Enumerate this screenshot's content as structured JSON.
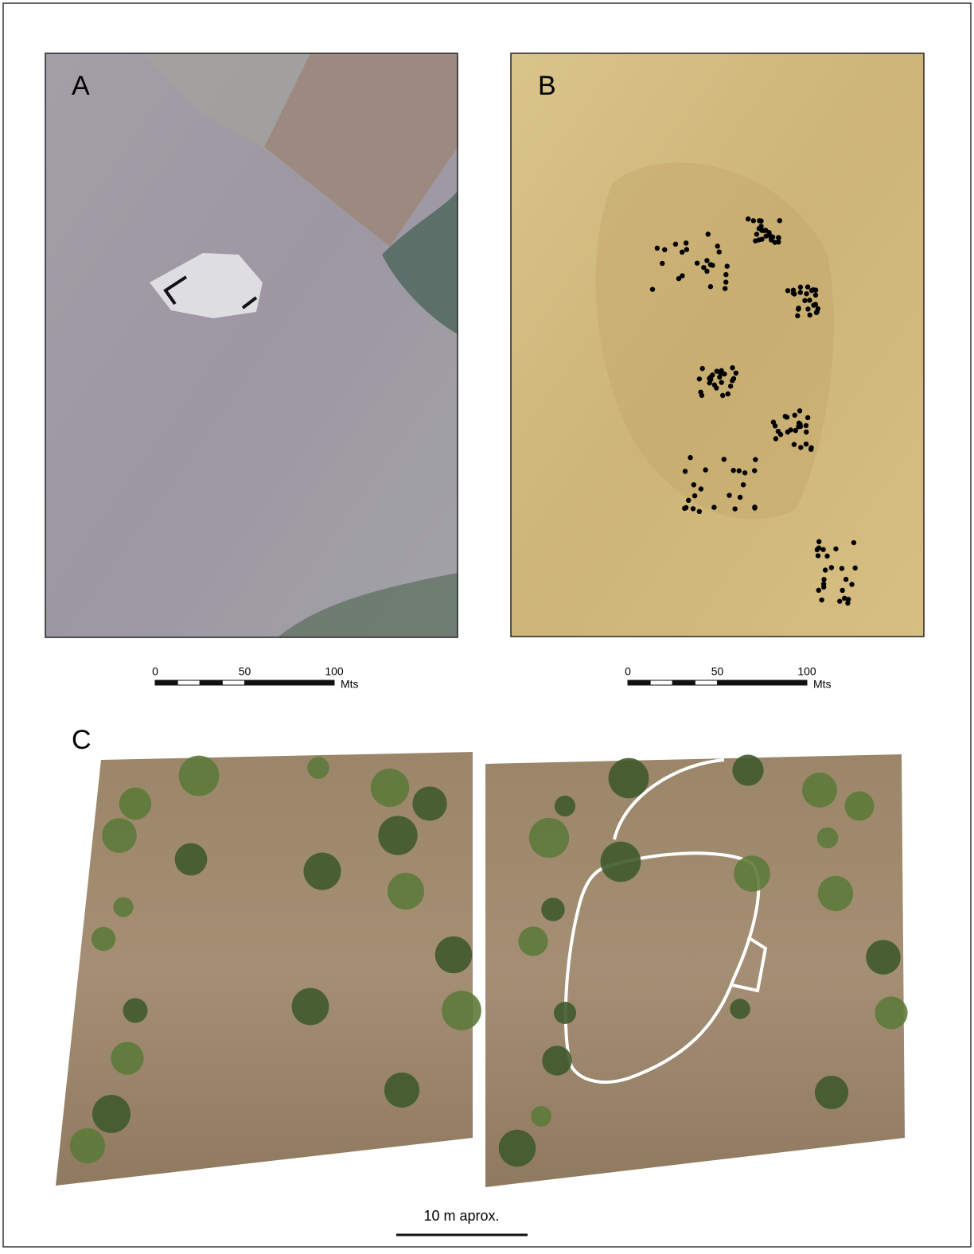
{
  "panels": [
    {
      "label": "A",
      "scale_bar": {
        "ticks": [
          0,
          50,
          100
        ],
        "unit": "Mts"
      }
    },
    {
      "label": "B",
      "scale_bar": {
        "ticks": [
          0,
          50,
          100
        ],
        "unit": "Mts"
      }
    },
    {
      "label": "C",
      "scale_bar": {
        "label": "10 m aprox."
      }
    }
  ]
}
